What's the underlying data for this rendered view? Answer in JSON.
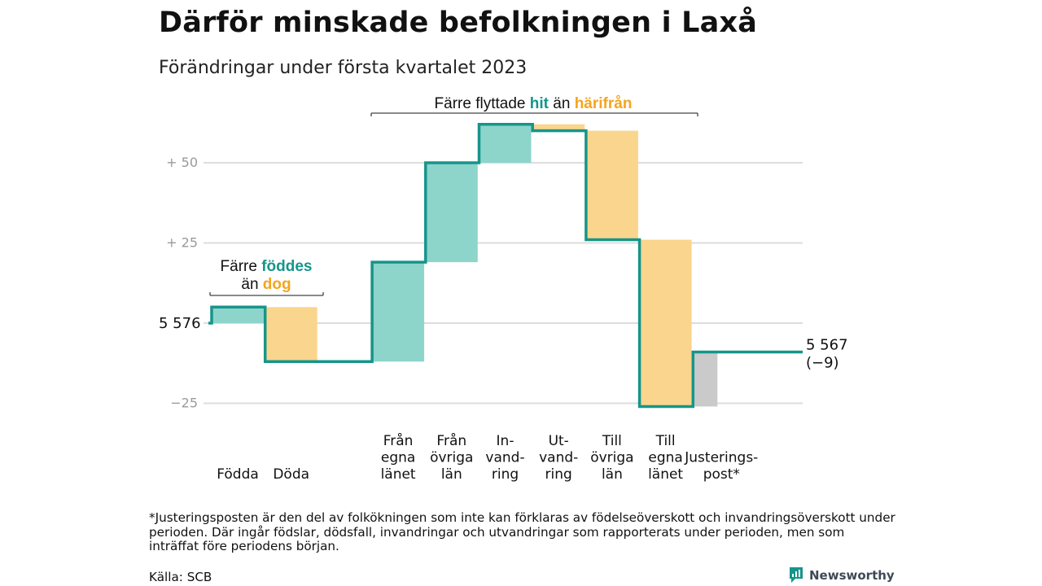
{
  "header": {
    "title": "Därför minskade befolkningen i Laxå",
    "subtitle": "Förändringar under första kvartalet 2023"
  },
  "colors": {
    "increase": "#8dd5cb",
    "decrease": "#fad58d",
    "adjustment": "#cacaca",
    "line": "#16958a",
    "hit_text": "#16958a",
    "harifran_text": "#f4a51f",
    "grid": "#dddddd"
  },
  "chart_data": {
    "type": "waterfall",
    "start_value": 5576,
    "end_value": 5567,
    "y_tick_values": [
      -25,
      25,
      50
    ],
    "y_tick_labels": [
      "−25",
      "+ 25",
      "+ 50"
    ],
    "start_label": "5 576",
    "end_label": "5 567",
    "end_change_label": "(−9)",
    "grid": true,
    "steps": [
      {
        "label": [
          "Födda"
        ],
        "change": 5,
        "kind": "increase"
      },
      {
        "label": [
          "Döda"
        ],
        "change": -17,
        "kind": "decrease"
      },
      {
        "label": [
          "Från",
          "egna",
          "länet"
        ],
        "change": 31,
        "kind": "increase"
      },
      {
        "label": [
          "Från",
          "övriga",
          "län"
        ],
        "change": 31,
        "kind": "increase"
      },
      {
        "label": [
          "In-",
          "vand-",
          "ring"
        ],
        "change": 12,
        "kind": "increase"
      },
      {
        "label": [
          "Ut-",
          "vand-",
          "ring"
        ],
        "change": -2,
        "kind": "decrease"
      },
      {
        "label": [
          "Till",
          "övriga",
          "län"
        ],
        "change": -34,
        "kind": "decrease"
      },
      {
        "label": [
          "Till",
          "egna",
          "länet"
        ],
        "change": -52,
        "kind": "decrease"
      },
      {
        "label": [
          "Justerings-",
          "post*"
        ],
        "change": 17,
        "kind": "adjustment"
      }
    ],
    "annotations": {
      "births": {
        "line1_pre": "Färre ",
        "line1_hl": "föddes",
        "line2_pre": "än ",
        "line2_hl": "dog"
      },
      "migration": {
        "pre": "Färre flyttade ",
        "hl1": "hit",
        "mid": " än ",
        "hl2": "härifrån"
      }
    }
  },
  "footer": {
    "footnote": "*Justeringsposten är den del av folkökningen som inte kan förklaras av födelseöverskott och invandringsöverskott under perioden. Där ingår födslar, dödsfall, invandringar och utvandringar som rapporterats under perioden, men som inträffat före periodens början.",
    "source": "Källa: SCB",
    "brand": "Newsworthy"
  }
}
